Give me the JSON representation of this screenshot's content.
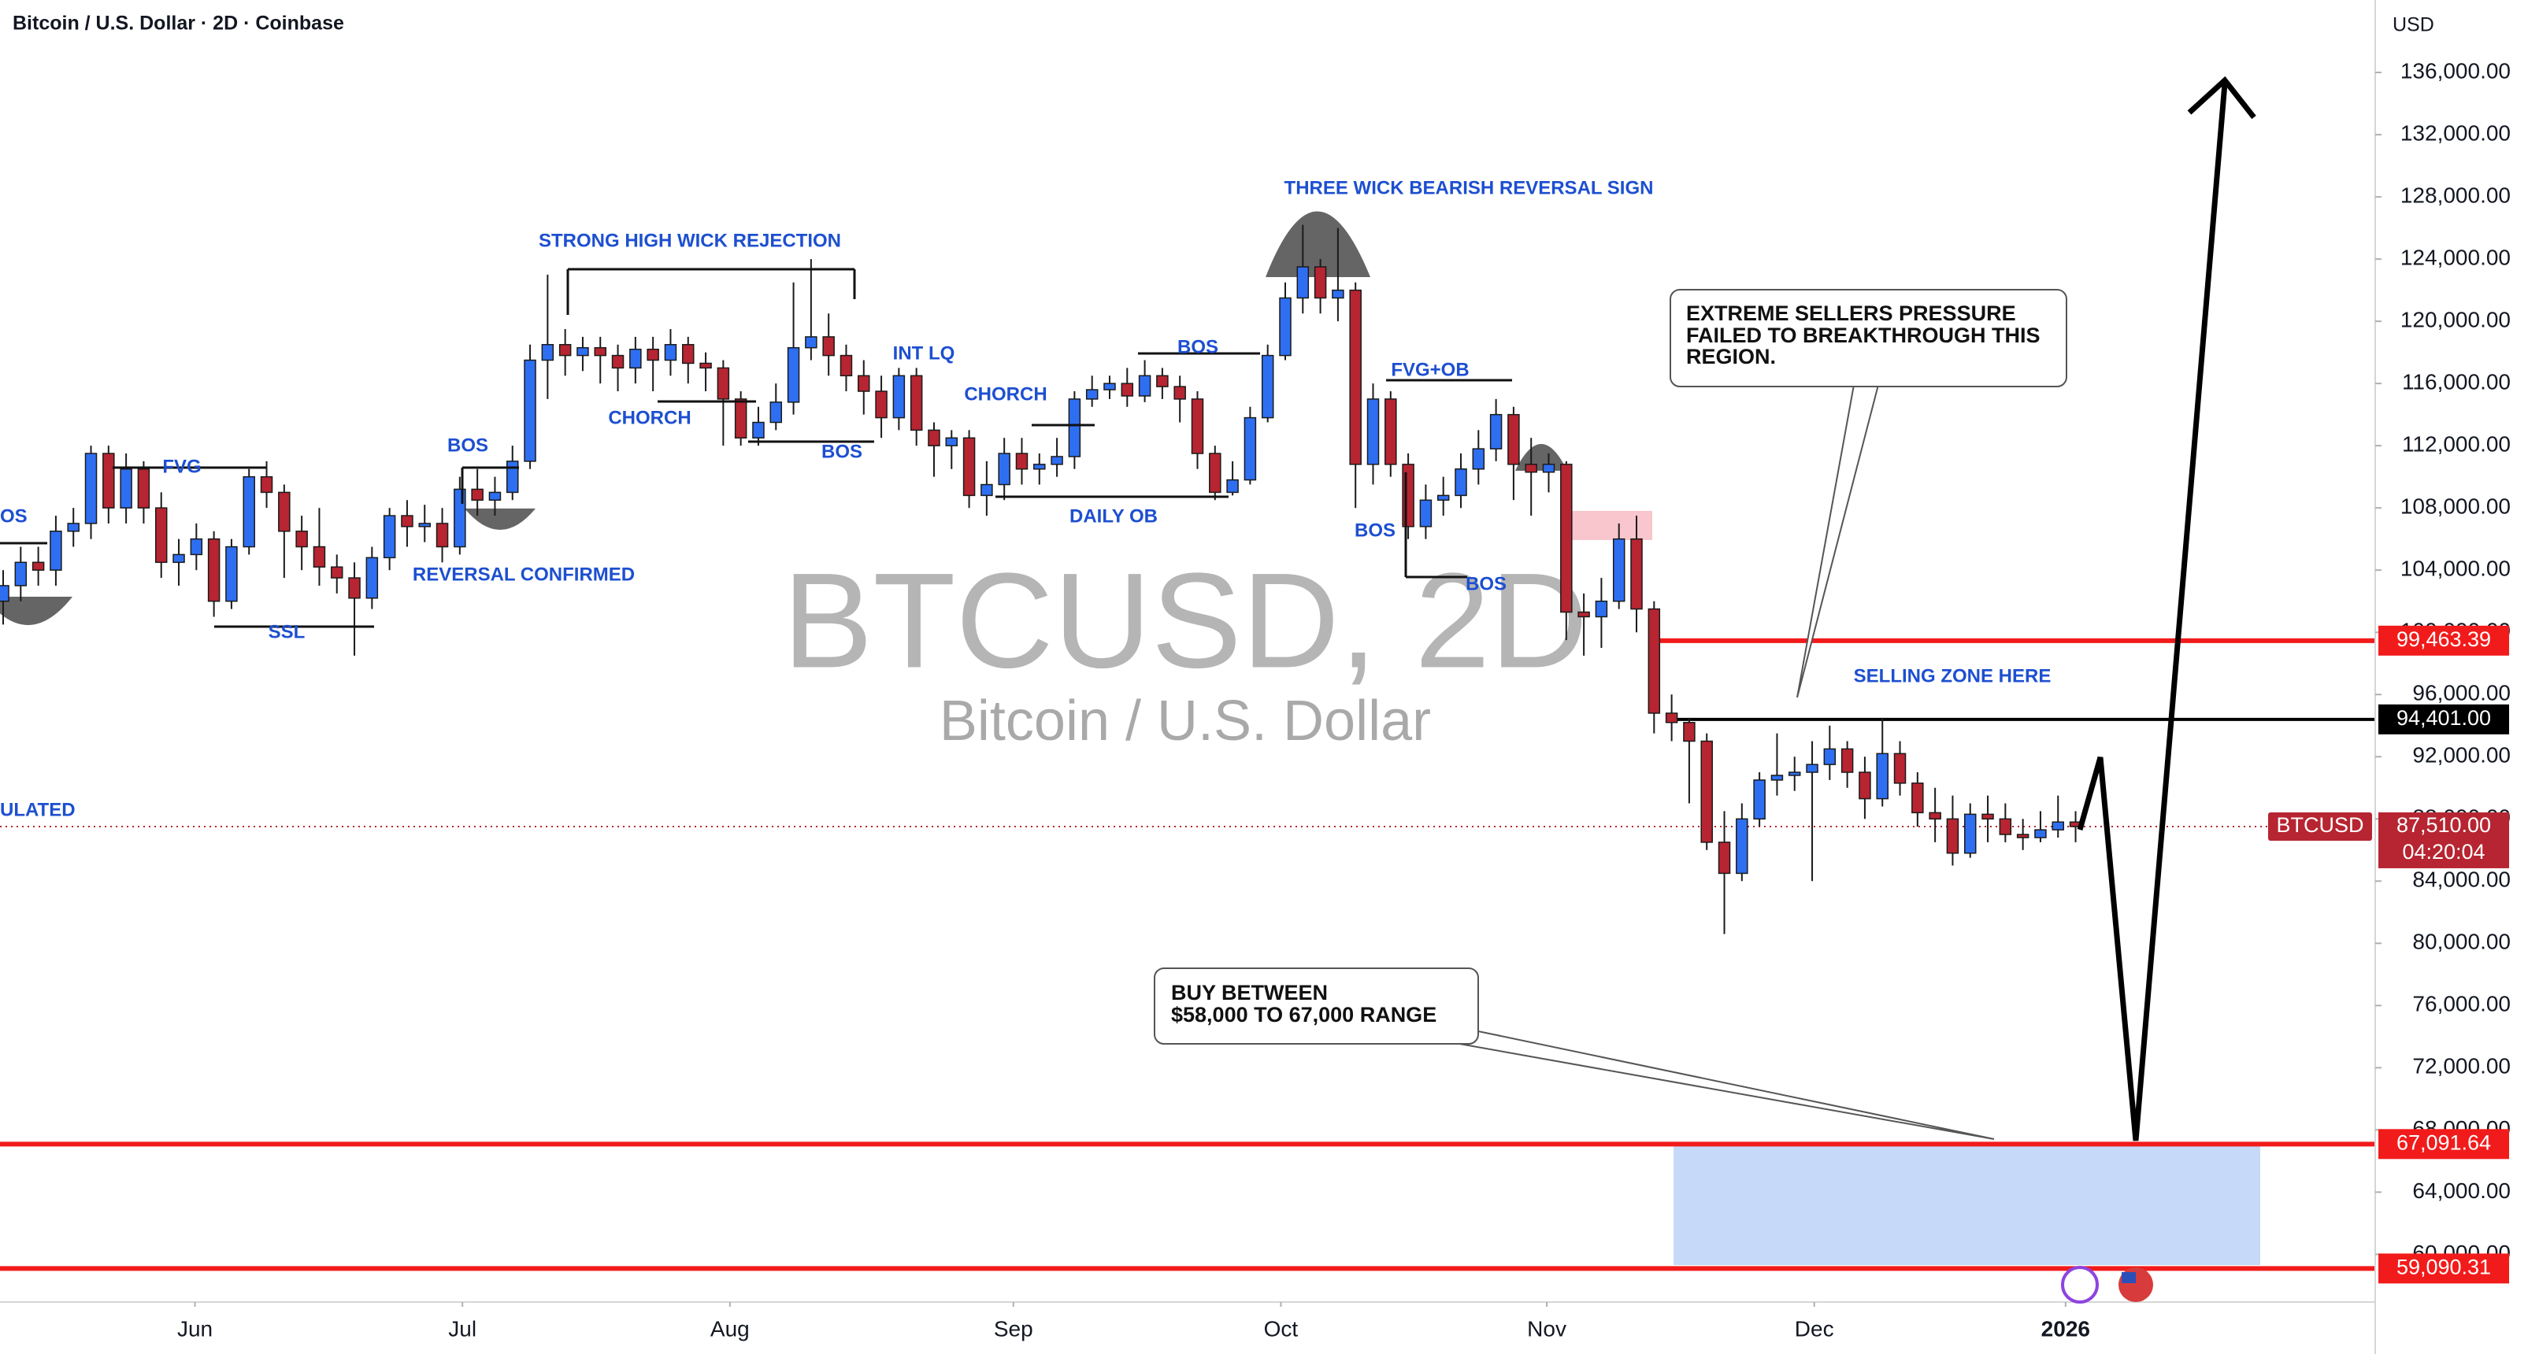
{
  "chart_data": {
    "type": "candlestick",
    "title": "Bitcoin / U.S. Dollar · 2D · Coinbase",
    "watermark": "BTCUSD, 2D",
    "subtitle": "Bitcoin / U.S. Dollar",
    "y_unit": "USD",
    "up_color": "#2e6ff2",
    "down_color": "#b62531",
    "open": [
      102000,
      103000,
      104500,
      104000,
      106500,
      107000,
      111500,
      108000,
      110500,
      108000,
      104500,
      105000,
      106000,
      102000,
      105500,
      110000,
      109000,
      106500,
      105500,
      104200,
      103500,
      102200,
      104800,
      107500,
      106800,
      107000,
      105500,
      109200,
      108500,
      109000,
      111000,
      117500,
      118500,
      117800,
      118300,
      117800,
      117000,
      118200,
      117500,
      118500,
      117300,
      117000,
      115000,
      112500,
      113500,
      114800,
      118300,
      119000,
      117800,
      116500,
      115500,
      113800,
      116500,
      113000,
      112000,
      112500,
      108800,
      109500,
      111500,
      110500,
      110800,
      111300,
      115000,
      115600,
      116000,
      115200,
      116500,
      115800,
      115000,
      111500,
      109000,
      109800,
      113800,
      117800,
      121500,
      123500,
      121500,
      122000,
      110800,
      115000,
      110800,
      106800,
      108500,
      108800,
      110500,
      111800,
      114000,
      110800,
      110300,
      110800,
      101300,
      101000,
      102000,
      106000,
      101500,
      94800,
      94200,
      93000,
      86500,
      84500,
      88000,
      90500,
      90800,
      91000,
      91500,
      92500,
      91000,
      89300,
      92200,
      90300,
      88400,
      88000,
      85800,
      88300,
      88000,
      87000,
      86800,
      87300,
      87800
    ],
    "high": [
      104000,
      105500,
      105500,
      107500,
      108000,
      112000,
      112000,
      111500,
      111000,
      109000,
      106000,
      107000,
      106500,
      106000,
      110500,
      111000,
      109500,
      107500,
      108000,
      105000,
      104500,
      105500,
      108000,
      108500,
      108200,
      108000,
      110000,
      110500,
      110000,
      112000,
      118500,
      123000,
      119500,
      119000,
      119000,
      118500,
      119000,
      119000,
      119500,
      119000,
      118000,
      117500,
      115500,
      114500,
      116000,
      122500,
      124000,
      120500,
      118500,
      117500,
      116500,
      117000,
      117000,
      113500,
      113000,
      113000,
      111000,
      112500,
      112500,
      111500,
      112500,
      115500,
      116500,
      116500,
      117000,
      117500,
      117000,
      116500,
      115500,
      112000,
      111000,
      114500,
      118500,
      122500,
      126200,
      124000,
      126000,
      122500,
      116000,
      115500,
      111500,
      109500,
      110000,
      111500,
      113000,
      115000,
      114500,
      112500,
      111500,
      111000,
      102500,
      103500,
      107000,
      107500,
      102000,
      96000,
      94500,
      93500,
      88500,
      89000,
      91000,
      93500,
      92000,
      93000,
      94000,
      93000,
      92000,
      94500,
      93000,
      91000,
      90000,
      89500,
      89000,
      89500,
      89000,
      88000,
      88500,
      89500,
      88500
    ],
    "low": [
      100500,
      102000,
      103000,
      103000,
      105500,
      106000,
      107000,
      107000,
      107000,
      103500,
      103000,
      104000,
      101000,
      101500,
      105000,
      108000,
      103500,
      104000,
      103000,
      102500,
      98500,
      101500,
      104000,
      105500,
      105800,
      104500,
      105000,
      107500,
      107500,
      108500,
      110500,
      115000,
      116500,
      116800,
      116000,
      115500,
      116000,
      115500,
      116500,
      116000,
      115500,
      112000,
      112000,
      112000,
      113000,
      114000,
      117500,
      116500,
      115500,
      114000,
      112500,
      113000,
      112000,
      110000,
      110500,
      108000,
      107500,
      108500,
      109500,
      109500,
      110000,
      110500,
      114500,
      115000,
      114500,
      114800,
      115000,
      113500,
      110500,
      108500,
      108800,
      109500,
      113500,
      117500,
      120500,
      120500,
      120000,
      108000,
      109500,
      110000,
      106000,
      106000,
      107500,
      108000,
      109500,
      111000,
      108500,
      107500,
      109000,
      99500,
      98500,
      99000,
      101500,
      100000,
      93500,
      93000,
      89000,
      86000,
      80600,
      84000,
      87500,
      89500,
      89800,
      84000,
      90500,
      90000,
      88000,
      88800,
      89500,
      87500,
      86500,
      85000,
      85500,
      86500,
      86500,
      86000,
      86500,
      86800,
      86500
    ],
    "close": [
      103000,
      104500,
      104000,
      106500,
      107000,
      111500,
      108000,
      110500,
      108000,
      104500,
      105000,
      106000,
      102000,
      105500,
      110000,
      109000,
      106500,
      105500,
      104200,
      103500,
      102200,
      104800,
      107500,
      106800,
      107000,
      105500,
      109200,
      108500,
      109000,
      111000,
      117500,
      118500,
      117800,
      118300,
      117800,
      117000,
      118200,
      117500,
      118500,
      117300,
      117000,
      115000,
      112500,
      113500,
      114800,
      118300,
      119000,
      117800,
      116500,
      115500,
      113800,
      116500,
      113000,
      112000,
      112500,
      108800,
      109500,
      111500,
      110500,
      110800,
      111300,
      115000,
      115600,
      116000,
      115200,
      116500,
      115800,
      115000,
      111500,
      109000,
      109800,
      113800,
      117800,
      121500,
      123500,
      121500,
      122000,
      110800,
      115000,
      110800,
      106800,
      108500,
      108800,
      110500,
      111800,
      114000,
      110800,
      110300,
      110800,
      101300,
      101000,
      102000,
      106000,
      101500,
      94800,
      94200,
      93000,
      86500,
      84500,
      88000,
      90500,
      90800,
      91000,
      91500,
      92500,
      91000,
      89300,
      92200,
      90300,
      88400,
      88000,
      85800,
      88300,
      88000,
      87000,
      86800,
      87300,
      87800,
      87510
    ],
    "xlim": [
      -0.18,
      135.06
    ],
    "xticks": [
      {
        "value": 10.92,
        "label": "Jun"
      },
      {
        "value": 26.15,
        "label": "Jul"
      },
      {
        "value": 41.38,
        "label": "Aug"
      },
      {
        "value": 57.52,
        "label": "Sep"
      },
      {
        "value": 72.75,
        "label": "Oct"
      },
      {
        "value": 87.89,
        "label": "Nov"
      },
      {
        "value": 103.12,
        "label": "Dec"
      },
      {
        "value": 117.43,
        "label": "2026"
      }
    ],
    "ylim": [
      56933,
      140660
    ],
    "yticks": [
      {
        "value": 60000,
        "label": "60,000.00"
      },
      {
        "value": 64000,
        "label": "64,000.00"
      },
      {
        "value": 68000,
        "label": "68,000.00"
      },
      {
        "value": 72000,
        "label": "72,000.00"
      },
      {
        "value": 76000,
        "label": "76,000.00"
      },
      {
        "value": 80000,
        "label": "80,000.00"
      },
      {
        "value": 84000,
        "label": "84,000.00"
      },
      {
        "value": 88000,
        "label": "88,000.00"
      },
      {
        "value": 92000,
        "label": "92,000.00"
      },
      {
        "value": 96000,
        "label": "96,000.00"
      },
      {
        "value": 100000,
        "label": "100,000.00"
      },
      {
        "value": 104000,
        "label": "104,000.00"
      },
      {
        "value": 108000,
        "label": "108,000.00"
      },
      {
        "value": 112000,
        "label": "112,000.00"
      },
      {
        "value": 116000,
        "label": "116,000.00"
      },
      {
        "value": 120000,
        "label": "120,000.00"
      },
      {
        "value": 124000,
        "label": "124,000.00"
      },
      {
        "value": 128000,
        "label": "128,000.00"
      },
      {
        "value": 132000,
        "label": "132,000.00"
      },
      {
        "value": 136000,
        "label": "136,000.00"
      }
    ],
    "levels": [
      {
        "value": 99463.39,
        "label": "99,463.39",
        "color": "#f21b1b"
      },
      {
        "value": 94401,
        "label": "94,401.00",
        "color": "#000000"
      },
      {
        "value": 67091.64,
        "label": "67,091.64",
        "color": "#f21b1b"
      },
      {
        "value": 59090.31,
        "label": "59,090.31",
        "color": "#f21b1b"
      }
    ],
    "last_price": {
      "name": "BTCUSD",
      "value": 87510,
      "label": "87,510.00",
      "countdown": "04:20:04",
      "color": "#b62531"
    },
    "annotations": [
      "OS",
      "FVG",
      "BOS",
      "REVERSAL CONFIRMED",
      "SSL",
      "STRONG HIGH WICK REJECTION",
      "CHORCH",
      "BOS",
      "INT LQ",
      "CHORCH",
      "DAILY OB",
      "BOS",
      "THREE WICK BEARISH REVERSAL SIGN",
      "FVG+OB",
      "BOS",
      "BOS",
      "ULATED",
      "SELLING ZONE HERE"
    ],
    "callouts": [
      [
        "EXTREME SELLERS PRESSURE",
        "FAILED TO BREAKTHROUGH THIS",
        "REGION."
      ],
      [
        "BUY BETWEEN",
        "$58,000 TO 67,000 RANGE"
      ]
    ]
  }
}
